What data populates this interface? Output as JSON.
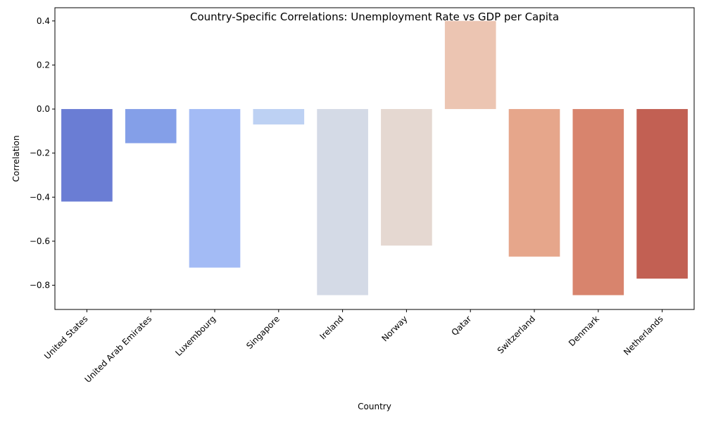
{
  "chart_data": {
    "type": "bar",
    "title": "Country-Specific Correlations: Unemployment Rate vs GDP per Capita",
    "xlabel": "Country",
    "ylabel": "Correlation",
    "categories": [
      "United States",
      "United Arab Emirates",
      "Luxembourg",
      "Singapore",
      "Ireland",
      "Norway",
      "Qatar",
      "Switzerland",
      "Denmark",
      "Netherlands"
    ],
    "values": [
      -0.42,
      -0.155,
      -0.72,
      -0.07,
      -0.845,
      -0.62,
      0.4,
      -0.67,
      -0.845,
      -0.77
    ],
    "ylim": [
      -0.91,
      0.46
    ],
    "yticks": [
      -0.8,
      -0.6,
      -0.4,
      -0.2,
      0.0,
      0.2,
      0.4
    ],
    "ytick_labels": [
      "−0.8",
      "−0.6",
      "−0.4",
      "−0.2",
      "0.0",
      "0.2",
      "0.4"
    ],
    "colors": [
      "#6a7dd4",
      "#849fe8",
      "#a3bbf5",
      "#bdd1f3",
      "#d4dae6",
      "#e5d8d1",
      "#ecc5b2",
      "#e6a68b",
      "#d8846d",
      "#c26053"
    ],
    "grid": false,
    "legend": "none"
  }
}
